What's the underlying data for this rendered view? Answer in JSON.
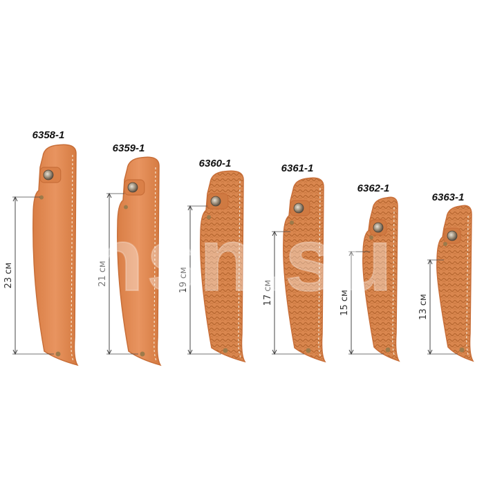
{
  "watermark": "nsn.su",
  "colors": {
    "leather": "#E08A52",
    "leather_dark": "#C86E38",
    "stitch": "#F6E6D2",
    "snap": "#8C7A64",
    "rivet": "#9C7A4A",
    "dim_line": "#444444"
  },
  "sheaths": [
    {
      "model": "6358-1",
      "length": "23 см",
      "pattern": "smooth"
    },
    {
      "model": "6359-1",
      "length": "21 см",
      "pattern": "smooth"
    },
    {
      "model": "6360-1",
      "length": "19 см",
      "pattern": "basket"
    },
    {
      "model": "6361-1",
      "length": "17 см",
      "pattern": "basket"
    },
    {
      "model": "6362-1",
      "length": "15 см",
      "pattern": "basket"
    },
    {
      "model": "6363-1",
      "length": "13 см",
      "pattern": "basket"
    }
  ]
}
